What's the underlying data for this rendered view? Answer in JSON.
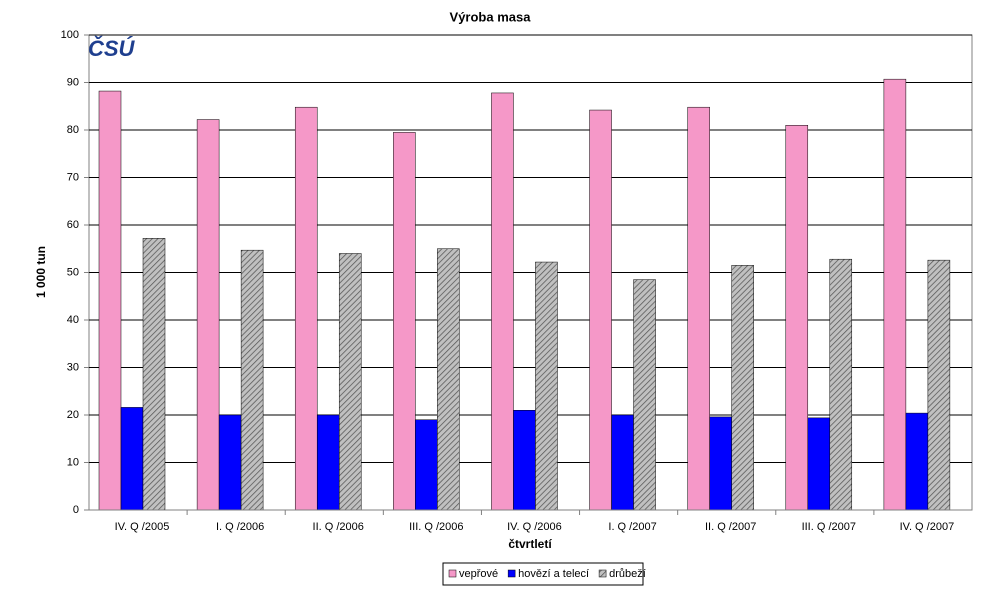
{
  "chart_data": {
    "type": "bar",
    "title": "Výroba masa",
    "logo": "ČSÚ",
    "x_label": "čtvrtletí",
    "y_label": "1 000 tun",
    "categories": [
      "IV. Q /2005",
      "I. Q /2006",
      "II. Q /2006",
      "III. Q /2006",
      "IV. Q /2006",
      "I. Q /2007",
      "II. Q /2007",
      "III. Q /2007",
      "IV. Q /2007"
    ],
    "series": [
      {
        "name": "vepřové",
        "color": "#f598c8",
        "values": [
          88.2,
          82.2,
          84.8,
          79.5,
          87.8,
          84.2,
          84.8,
          81.0,
          90.7
        ]
      },
      {
        "name": "hovězí a telecí",
        "color": "#0000ff",
        "values": [
          21.6,
          20.0,
          20.0,
          19.0,
          21.0,
          20.0,
          19.6,
          19.4,
          20.4
        ]
      },
      {
        "name": "drůbeží",
        "color": "#c0c0c0",
        "pattern": "hatch",
        "values": [
          57.2,
          54.7,
          54.0,
          55.0,
          52.2,
          48.5,
          51.5,
          52.8,
          52.6
        ]
      }
    ],
    "ylim": [
      0,
      100
    ],
    "yticks": [
      0,
      10,
      20,
      30,
      40,
      50,
      60,
      70,
      80,
      90,
      100
    ],
    "grid": true,
    "legend": "bottom"
  }
}
